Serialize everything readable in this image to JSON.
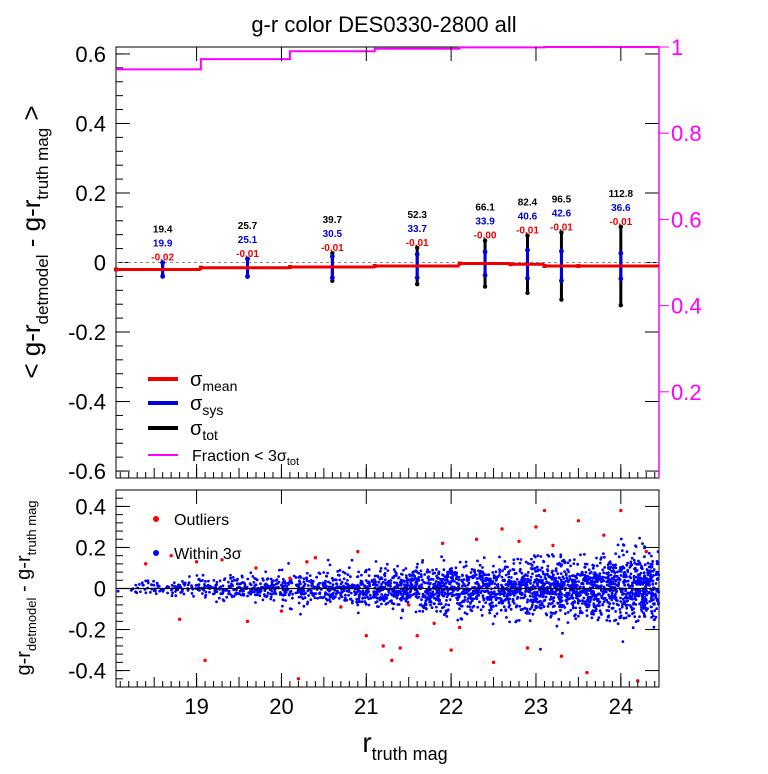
{
  "title": "g-r color DES0330-2800 all",
  "colors": {
    "mean": "#ee0000",
    "sys": "#0000dd",
    "tot": "#000000",
    "fraction": "#ff00ff",
    "outlier": "#ff0000",
    "within": "#0000ff"
  },
  "chart_data": [
    {
      "type": "line",
      "title": "g-r color DES0330-2800 all",
      "xlabel": "r",
      "xlabel_sub": "truth mag",
      "ylabel_parts": {
        "open": "< g-r",
        "sub1": "detmodel",
        "mid": " - g-r",
        "sub2": "truth mag",
        "close": " >"
      },
      "xlim": [
        18.05,
        24.45
      ],
      "ylim": [
        -0.62,
        0.62
      ],
      "yticks": [
        "0.6",
        "0.4",
        "0.2",
        "0",
        "-0.2",
        "-0.4",
        "-0.6"
      ],
      "ytick_values": [
        0.6,
        0.4,
        0.2,
        0,
        -0.2,
        -0.4,
        -0.6
      ],
      "right_axis": {
        "ylim": [
          0.0,
          1.0
        ],
        "ticks": [
          "1",
          "0.8",
          "0.6",
          "0.4",
          "0.2"
        ],
        "tick_values": [
          1.0,
          0.8,
          0.6,
          0.4,
          0.2
        ]
      },
      "bins": [
        {
          "lo": 18.05,
          "hi": 19.05,
          "center": 18.6,
          "mean": -0.02,
          "sys": 0.0199,
          "tot": 0.0194,
          "lab_tot": "19.4",
          "lab_sys": "19.9",
          "lab_mean": "-0.02"
        },
        {
          "lo": 19.05,
          "hi": 20.1,
          "center": 19.6,
          "mean": -0.015,
          "sys": 0.0251,
          "tot": 0.0257,
          "lab_tot": "25.7",
          "lab_sys": "25.1",
          "lab_mean": "-0.01"
        },
        {
          "lo": 20.1,
          "hi": 21.1,
          "center": 20.6,
          "mean": -0.013,
          "sys": 0.0305,
          "tot": 0.0397,
          "lab_tot": "39.7",
          "lab_sys": "30.5",
          "lab_mean": "-0.01"
        },
        {
          "lo": 21.1,
          "hi": 22.1,
          "center": 21.6,
          "mean": -0.01,
          "sys": 0.0337,
          "tot": 0.0523,
          "lab_tot": "52.3",
          "lab_sys": "33.7",
          "lab_mean": "-0.01"
        },
        {
          "lo": 22.1,
          "hi": 22.7,
          "center": 22.4,
          "mean": -0.003,
          "sys": 0.0339,
          "tot": 0.0661,
          "lab_tot": "66.1",
          "lab_sys": "33.9",
          "lab_mean": "-0.00"
        },
        {
          "lo": 22.7,
          "hi": 23.1,
          "center": 22.9,
          "mean": -0.005,
          "sys": 0.0406,
          "tot": 0.0824,
          "lab_tot": "82.4",
          "lab_sys": "40.6",
          "lab_mean": "-0.01"
        },
        {
          "lo": 23.1,
          "hi": 23.5,
          "center": 23.3,
          "mean": -0.01,
          "sys": 0.0426,
          "tot": 0.0965,
          "lab_tot": "96.5",
          "lab_sys": "42.6",
          "lab_mean": "-0.01"
        },
        {
          "lo": 23.5,
          "hi": 24.45,
          "center": 24.0,
          "mean": -0.01,
          "sys": 0.0366,
          "tot": 0.1128,
          "lab_tot": "112.8",
          "lab_sys": "36.6",
          "lab_mean": "-0.01"
        }
      ],
      "fraction_steps": [
        {
          "x": 18.05,
          "y": 0.948
        },
        {
          "x": 19.05,
          "y": 0.972
        },
        {
          "x": 20.1,
          "y": 0.99
        },
        {
          "x": 21.1,
          "y": 0.996
        },
        {
          "x": 22.1,
          "y": 0.999
        },
        {
          "x": 23.1,
          "y": 1.0
        },
        {
          "x": 24.45,
          "y": 1.0
        }
      ],
      "legend": [
        {
          "key": "mean",
          "text": "σ",
          "sub": "mean"
        },
        {
          "key": "sys",
          "text": "σ",
          "sub": "sys"
        },
        {
          "key": "tot",
          "text": "σ",
          "sub": "tot"
        },
        {
          "key": "fraction",
          "text": "Fraction < 3σ",
          "sub": "tot"
        }
      ]
    },
    {
      "type": "scatter",
      "xlabel": "r",
      "xlabel_sub": "truth mag",
      "ylabel_parts": {
        "open": "g-r",
        "sub1": "detmodel",
        "mid": " - g-r",
        "sub2": "truth mag",
        "close": ""
      },
      "xlim": [
        18.05,
        24.45
      ],
      "ylim": [
        -0.48,
        0.48
      ],
      "xticks": [
        "19",
        "20",
        "21",
        "22",
        "23",
        "24"
      ],
      "xtick_values": [
        19,
        20,
        21,
        22,
        23,
        24
      ],
      "yticks": [
        "0.4",
        "0.2",
        "0",
        "-0.2",
        "-0.4"
      ],
      "ytick_values": [
        0.4,
        0.2,
        0,
        -0.2,
        -0.4
      ],
      "legend": [
        {
          "key": "outlier",
          "text": "Outliers"
        },
        {
          "key": "within",
          "text": "Within 3σ"
        }
      ],
      "outliers": [
        [
          18.4,
          0.12
        ],
        [
          18.7,
          0.16
        ],
        [
          18.8,
          -0.15
        ],
        [
          19.0,
          0.13
        ],
        [
          19.3,
          0.14
        ],
        [
          19.6,
          -0.16
        ],
        [
          19.7,
          0.1
        ],
        [
          20.0,
          -0.11
        ],
        [
          20.1,
          0.05
        ],
        [
          20.3,
          0.13
        ],
        [
          20.4,
          0.15
        ],
        [
          20.7,
          -0.09
        ],
        [
          20.9,
          0.18
        ],
        [
          21.0,
          -0.23
        ],
        [
          21.2,
          -0.28
        ],
        [
          21.3,
          -0.35
        ],
        [
          21.4,
          -0.29
        ],
        [
          21.6,
          -0.23
        ],
        [
          21.8,
          -0.17
        ],
        [
          21.9,
          0.22
        ],
        [
          22.1,
          -0.19
        ],
        [
          22.3,
          0.24
        ],
        [
          22.5,
          -0.36
        ],
        [
          22.6,
          0.29
        ],
        [
          22.8,
          0.23
        ],
        [
          23.0,
          0.3
        ],
        [
          23.1,
          0.38
        ],
        [
          23.3,
          -0.33
        ],
        [
          23.5,
          0.33
        ],
        [
          23.6,
          -0.41
        ],
        [
          23.8,
          0.26
        ],
        [
          24.0,
          0.38
        ],
        [
          24.2,
          -0.45
        ],
        [
          24.3,
          0.18
        ],
        [
          20.2,
          -0.44
        ],
        [
          19.1,
          -0.35
        ],
        [
          22.0,
          -0.3
        ],
        [
          23.2,
          0.21
        ],
        [
          21.5,
          -0.08
        ],
        [
          22.9,
          -0.29
        ]
      ],
      "within_summary": {
        "n_points": 2800,
        "x_range": [
          18.05,
          24.45
        ],
        "spread_at_19": 0.04,
        "spread_at_24": 0.24
      }
    }
  ]
}
